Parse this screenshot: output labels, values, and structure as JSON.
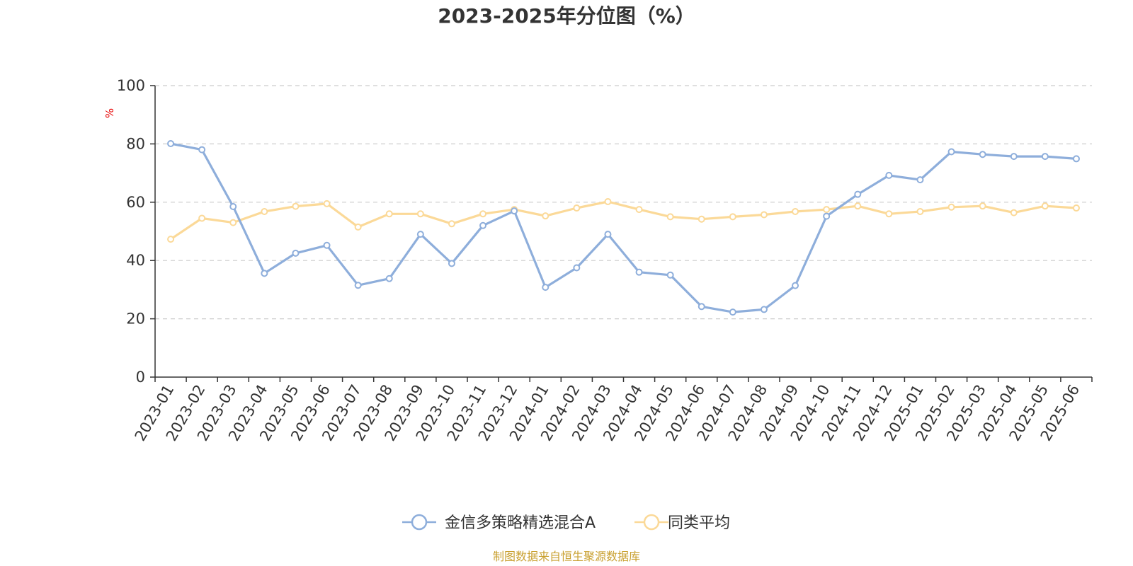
{
  "chart_data": {
    "type": "line",
    "title": "2023-2025年分位图（%）",
    "y_unit": "%",
    "ylim": [
      0,
      100
    ],
    "yticks": [
      0,
      20,
      40,
      60,
      80,
      100
    ],
    "grid": true,
    "legend_position": "bottom",
    "x": [
      "2023-01",
      "2023-02",
      "2023-03",
      "2023-04",
      "2023-05",
      "2023-06",
      "2023-07",
      "2023-08",
      "2023-09",
      "2023-10",
      "2023-11",
      "2023-12",
      "2024-01",
      "2024-02",
      "2024-03",
      "2024-04",
      "2024-05",
      "2024-06",
      "2024-07",
      "2024-08",
      "2024-09",
      "2024-10",
      "2024-11",
      "2024-12",
      "2025-01",
      "2025-02",
      "2025-03",
      "2025-04",
      "2025-05",
      "2025-06"
    ],
    "series": [
      {
        "name": "金信多策略精选混合A",
        "color": "#8eaedb",
        "values": [
          80.1,
          78.0,
          58.5,
          35.6,
          42.5,
          45.2,
          31.5,
          33.8,
          49.0,
          39.0,
          52.0,
          57.0,
          30.8,
          37.5,
          49.0,
          36.0,
          35.0,
          24.2,
          22.3,
          23.2,
          31.4,
          55.2,
          62.7,
          69.2,
          67.7,
          77.3,
          76.4,
          75.7,
          75.7,
          74.9
        ]
      },
      {
        "name": "同类平均",
        "color": "#fbd998",
        "values": [
          47.3,
          54.5,
          53.0,
          56.8,
          58.6,
          59.5,
          51.5,
          56.0,
          56.0,
          52.6,
          56.0,
          57.5,
          55.3,
          58.0,
          60.2,
          57.5,
          55.0,
          54.2,
          55.0,
          55.7,
          56.8,
          57.5,
          58.7,
          56.0,
          56.8,
          58.3,
          58.7,
          56.4,
          58.7,
          58.0
        ]
      }
    ]
  },
  "source": "制图数据来自恒生聚源数据库",
  "colors": {
    "axis": "#333333",
    "grid": "#cccccc",
    "unit": "#e60000",
    "source": "#c9a030"
  }
}
